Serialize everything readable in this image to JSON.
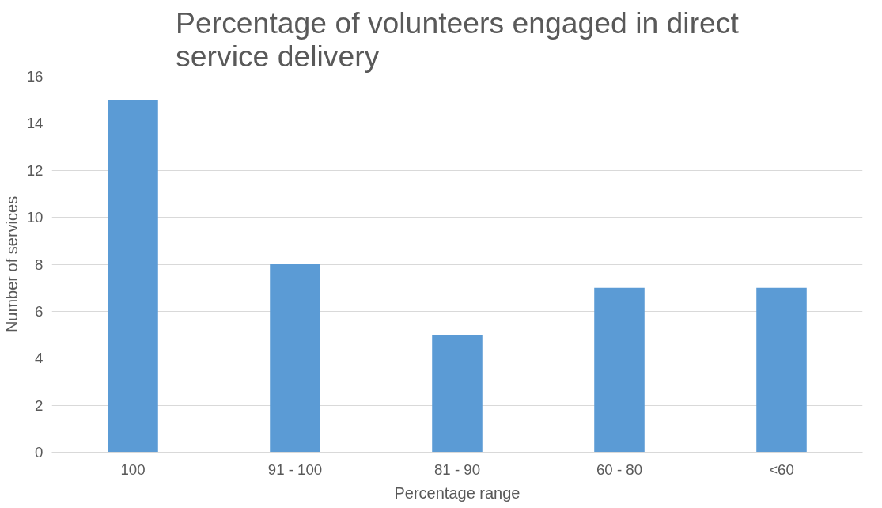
{
  "chart_data": {
    "type": "bar",
    "title": "Percentage of volunteers engaged in direct service delivery",
    "xlabel": "Percentage range",
    "ylabel": "Number of services",
    "categories": [
      "100",
      "91 - 100",
      "81 - 90",
      "60 - 80",
      "<60"
    ],
    "values": [
      15,
      8,
      5,
      7,
      7
    ],
    "color": "#5b9bd5",
    "ylim": [
      0,
      16
    ],
    "yticks": [
      0,
      2,
      4,
      6,
      8,
      10,
      12,
      14,
      16
    ],
    "grid": "y"
  }
}
